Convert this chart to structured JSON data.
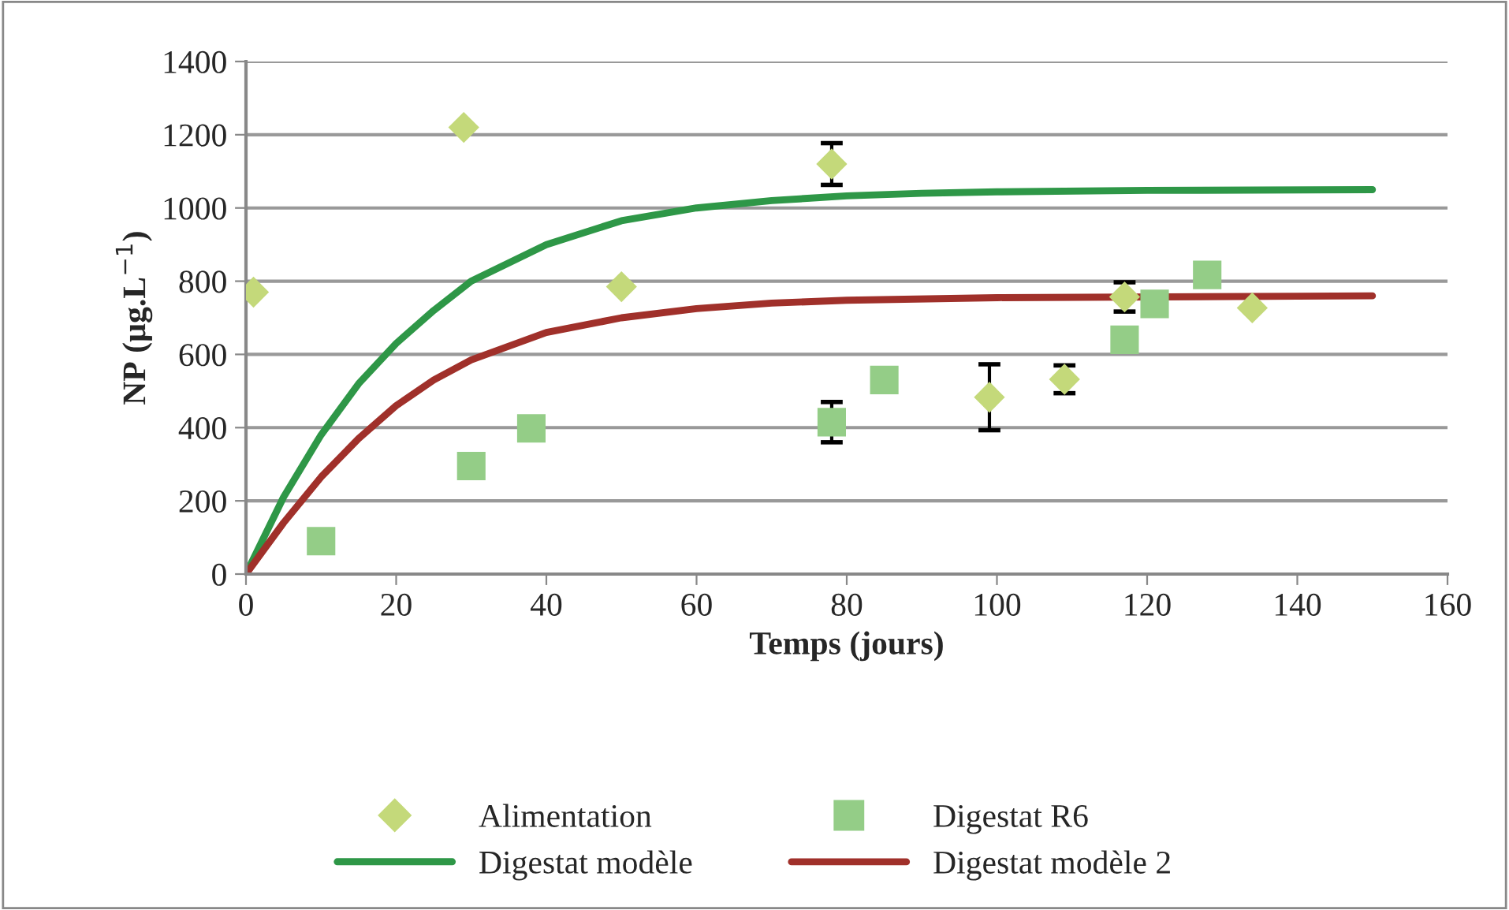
{
  "chart_data": {
    "type": "scatter",
    "xlabel": "Temps (jours)",
    "ylabel": "NP (µg.L$^{−1}$)",
    "xlim": [
      0,
      160
    ],
    "xticks": [
      0,
      20,
      40,
      60,
      80,
      100,
      120,
      140,
      160
    ],
    "ylim": [
      0,
      1400
    ],
    "yticks": [
      0,
      200,
      400,
      600,
      800,
      1000,
      1200,
      1400
    ],
    "grid": "y",
    "legend": "bottom",
    "series": [
      {
        "name": "Alimentation",
        "marker": "diamond",
        "color": "#c4d97a",
        "x": [
          1,
          29,
          50,
          78,
          99,
          109,
          117,
          134
        ],
        "values": [
          770,
          1220,
          785,
          1120,
          483,
          532,
          757,
          727
        ],
        "errors": [
          null,
          null,
          null,
          57,
          90,
          38,
          40,
          null
        ]
      },
      {
        "name": "Digestat R6",
        "marker": "square",
        "color": "#94cd87",
        "x": [
          10,
          30,
          38,
          78,
          85,
          117,
          121,
          128
        ],
        "values": [
          90,
          295,
          398,
          415,
          530,
          640,
          738,
          817
        ],
        "errors": [
          null,
          null,
          null,
          55,
          null,
          null,
          null,
          null
        ]
      },
      {
        "name": "Digestat modèle",
        "type": "line",
        "line_style": "solid",
        "color": "#2e9747",
        "x": [
          0,
          5,
          10,
          15,
          20,
          25,
          30,
          40,
          50,
          60,
          70,
          80,
          90,
          100,
          120,
          150
        ],
        "values": [
          0,
          210,
          380,
          520,
          630,
          720,
          800,
          900,
          965,
          1000,
          1020,
          1033,
          1040,
          1044,
          1048,
          1050
        ]
      },
      {
        "name": "Digestat modèle 2",
        "type": "line",
        "line_style": "solid",
        "color": "#a0302a",
        "x": [
          0,
          5,
          10,
          15,
          20,
          25,
          30,
          40,
          50,
          60,
          70,
          80,
          100,
          140,
          150
        ],
        "values": [
          0,
          140,
          265,
          370,
          460,
          530,
          585,
          660,
          700,
          725,
          740,
          748,
          755,
          759,
          760
        ]
      }
    ]
  }
}
